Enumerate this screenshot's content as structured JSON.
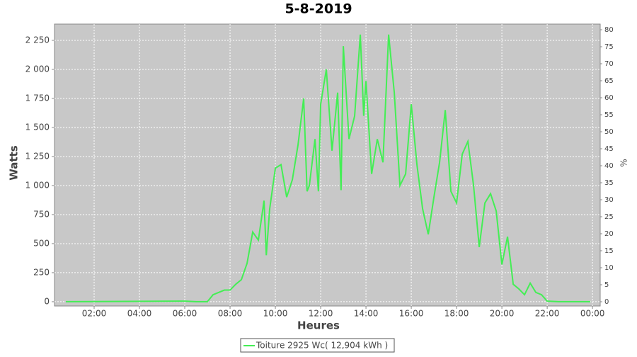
{
  "chart_data": {
    "type": "line",
    "title": "5-8-2019",
    "x_label": "Heures",
    "y_label": "Watts",
    "y2_label": "%",
    "x": [
      0.75,
      6.0,
      6.5,
      7.0,
      7.25,
      7.5,
      7.75,
      8.0,
      8.25,
      8.5,
      8.75,
      9.0,
      9.25,
      9.5,
      9.6,
      9.75,
      10.0,
      10.25,
      10.5,
      10.75,
      11.0,
      11.25,
      11.4,
      11.5,
      11.75,
      11.9,
      12.0,
      12.25,
      12.5,
      12.75,
      12.9,
      13.0,
      13.25,
      13.5,
      13.75,
      13.9,
      14.0,
      14.25,
      14.5,
      14.75,
      15.0,
      15.25,
      15.5,
      15.75,
      16.0,
      16.25,
      16.5,
      16.75,
      17.0,
      17.25,
      17.5,
      17.75,
      18.0,
      18.25,
      18.5,
      18.75,
      19.0,
      19.25,
      19.5,
      19.75,
      20.0,
      20.25,
      20.5,
      20.75,
      21.0,
      21.25,
      21.5,
      21.75,
      22.0,
      22.5,
      23.9
    ],
    "series": [
      {
        "name": "Toiture 2925 Wc( 12,904 kWh )",
        "color": "#44ee55",
        "values": [
          0,
          5,
          0,
          0,
          60,
          80,
          100,
          100,
          150,
          190,
          330,
          600,
          530,
          870,
          400,
          800,
          1150,
          1180,
          900,
          1050,
          1350,
          1750,
          950,
          1000,
          1400,
          950,
          1700,
          2000,
          1300,
          1800,
          960,
          2200,
          1400,
          1600,
          2300,
          1600,
          1900,
          1100,
          1400,
          1200,
          2300,
          1800,
          1000,
          1100,
          1700,
          1180,
          800,
          580,
          900,
          1200,
          1650,
          950,
          850,
          1270,
          1380,
          1000,
          470,
          850,
          930,
          780,
          320,
          560,
          150,
          110,
          60,
          160,
          80,
          60,
          5,
          0,
          0
        ]
      }
    ],
    "xlim": [
      0.25,
      24.34
    ],
    "xticks": [
      {
        "value": 2,
        "label": "02:00"
      },
      {
        "value": 4,
        "label": "04:00"
      },
      {
        "value": 6,
        "label": "06:00"
      },
      {
        "value": 8,
        "label": "08:00"
      },
      {
        "value": 10,
        "label": "10:00"
      },
      {
        "value": 12,
        "label": "12:00"
      },
      {
        "value": 14,
        "label": "14:00"
      },
      {
        "value": 16,
        "label": "16:00"
      },
      {
        "value": 18,
        "label": "18:00"
      },
      {
        "value": 20,
        "label": "20:00"
      },
      {
        "value": 22,
        "label": "22:00"
      },
      {
        "value": 24,
        "label": "00:00"
      }
    ],
    "ylim": [
      -37,
      2390
    ],
    "yticks": [
      0,
      250,
      500,
      750,
      {
        "value": 1000,
        "label": "1 000"
      },
      {
        "value": 1250,
        "label": "1 250"
      },
      {
        "value": 1500,
        "label": "1 500"
      },
      {
        "value": 1750,
        "label": "1 750"
      },
      {
        "value": 2000,
        "label": "2 000"
      },
      {
        "value": 2250,
        "label": "2 250"
      }
    ],
    "y2lim": [
      -1.25,
      81.67
    ],
    "y2ticks": [
      0,
      5,
      10,
      15,
      20,
      25,
      30,
      35,
      40,
      45,
      50,
      55,
      60,
      65,
      70,
      75,
      80
    ],
    "grid": true
  }
}
